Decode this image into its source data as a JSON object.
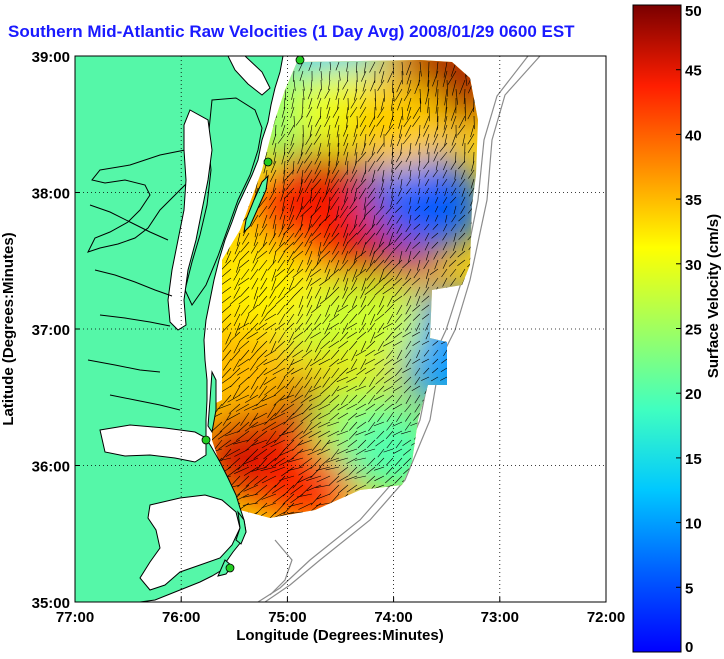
{
  "chart_data": {
    "type": "heatmap",
    "title": "Southern Mid-Atlantic Raw Velocities (1 Day Avg) 2008/01/29 0600 EST",
    "xlabel": "Longitude (Degrees:Minutes)",
    "ylabel": "Latitude (Degrees:Minutes)",
    "xlim": [
      -77.0,
      -72.0
    ],
    "ylim": [
      35.0,
      39.0
    ],
    "x_ticks": [
      -77,
      -76,
      -75,
      -74,
      -73,
      -72
    ],
    "y_ticks": [
      35,
      36,
      37,
      38,
      39
    ],
    "x_tick_labels": [
      "77:00",
      "76:00",
      "75:00",
      "74:00",
      "73:00",
      "72:00"
    ],
    "y_tick_labels": [
      "35:00",
      "36:00",
      "37:00",
      "38:00",
      "39:00"
    ],
    "grid": true,
    "colorbar": {
      "label": "Surface Velocity (cm/s)",
      "min": 0,
      "max": 50,
      "ticks": [
        0,
        5,
        10,
        15,
        20,
        25,
        30,
        35,
        40,
        45,
        50
      ],
      "tick_labels": [
        "0",
        "5",
        "10",
        "15",
        "20",
        "25",
        "30",
        "35",
        "40",
        "45",
        "50"
      ],
      "colormap": "jet"
    },
    "velocity_field": [
      {
        "lon": -74.6,
        "lat": 38.05,
        "speed": 47
      },
      {
        "lon": -74.1,
        "lat": 37.6,
        "speed": 46
      },
      {
        "lon": -74.8,
        "lat": 37.8,
        "speed": 44
      },
      {
        "lon": -75.1,
        "lat": 36.35,
        "speed": 47
      },
      {
        "lon": -75.3,
        "lat": 36.1,
        "speed": 46
      },
      {
        "lon": -74.8,
        "lat": 35.95,
        "speed": 44
      },
      {
        "lon": -73.55,
        "lat": 38.8,
        "speed": 48
      },
      {
        "lon": -73.75,
        "lat": 38.0,
        "speed": 8
      },
      {
        "lon": -73.65,
        "lat": 37.9,
        "speed": 6
      },
      {
        "lon": -73.5,
        "lat": 36.95,
        "speed": 7
      },
      {
        "lon": -73.45,
        "lat": 36.75,
        "speed": 10
      },
      {
        "lon": -74.6,
        "lat": 39.0,
        "speed": 13
      },
      {
        "lon": -74.9,
        "lat": 37.1,
        "speed": 27
      },
      {
        "lon": -74.2,
        "lat": 37.05,
        "speed": 28
      },
      {
        "lon": -75.1,
        "lat": 38.6,
        "speed": 24
      },
      {
        "lon": -74.3,
        "lat": 36.3,
        "speed": 26
      },
      {
        "lon": -74.0,
        "lat": 36.1,
        "speed": 20
      },
      {
        "lon": -75.4,
        "lat": 36.7,
        "speed": 35
      },
      {
        "lon": -75.2,
        "lat": 37.3,
        "speed": 32
      },
      {
        "lon": -74.45,
        "lat": 38.6,
        "speed": 30
      },
      {
        "lon": -73.95,
        "lat": 38.5,
        "speed": 34
      }
    ]
  },
  "colors": {
    "land": "#55f7a8",
    "title": "#1a1aff",
    "coast": "#000000",
    "bathymetry": "#8c8c8c",
    "station": "#22cc22"
  }
}
